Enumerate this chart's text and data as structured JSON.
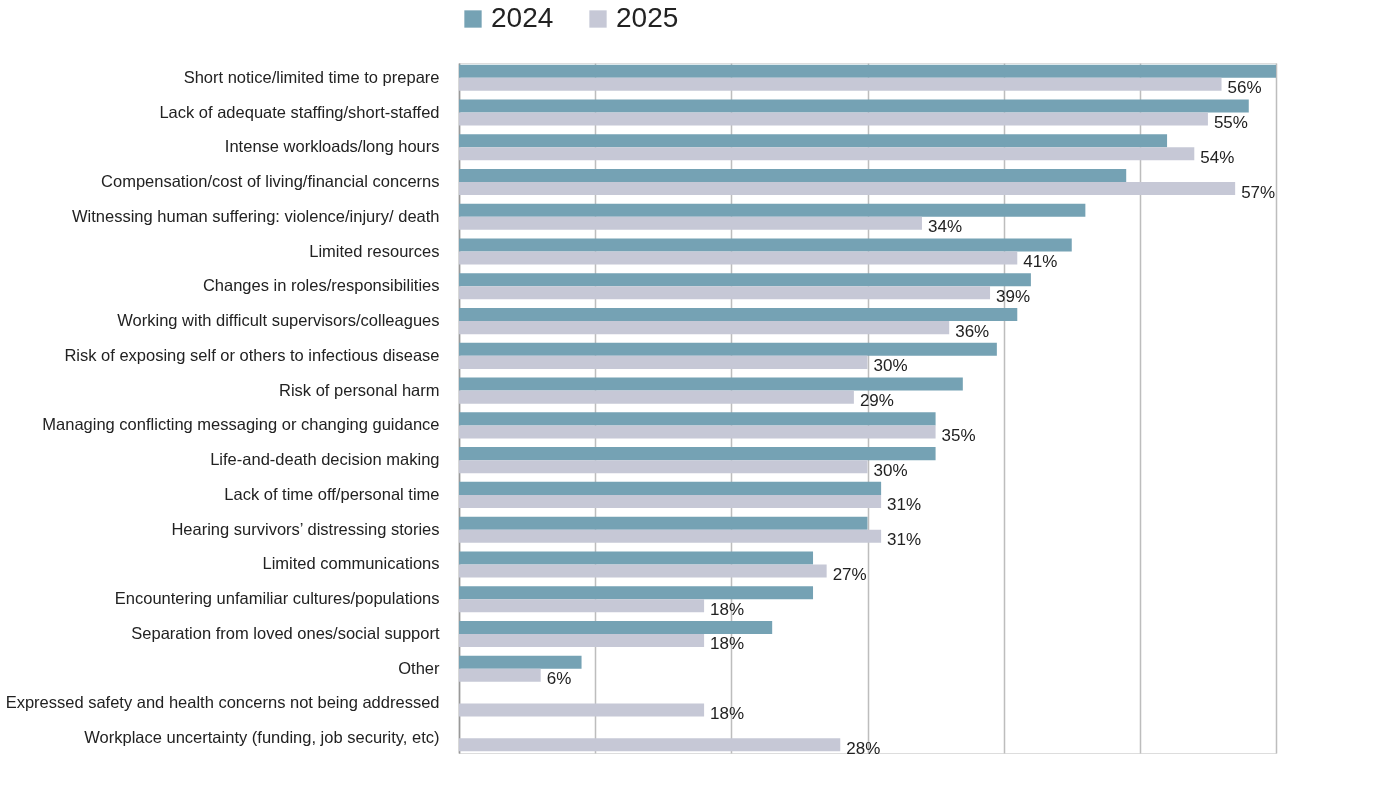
{
  "chart_data": {
    "type": "bar",
    "orientation": "horizontal",
    "categories": [
      "Short notice/limited time to prepare",
      "Lack of adequate staffing/short-staffed",
      "Intense workloads/long hours",
      "Compensation/cost of living/financial concerns",
      "Witnessing human suffering: violence/injury/ death",
      "Limited resources",
      "Changes in roles/responsibilities",
      "Working with difficult supervisors/colleagues",
      "Risk of exposing self or others to infectious disease",
      "Risk of personal harm",
      "Managing conflicting messaging or changing guidance",
      "Life-and-death decision making",
      "Lack of time off/personal time",
      "Hearing survivors’ distressing stories",
      "Limited communications",
      "Encountering unfamiliar cultures/populations",
      "Separation from loved ones/social support",
      "Other",
      "Expressed safety and health concerns not being addressed",
      "Workplace uncertainty (funding, job security, etc)"
    ],
    "series": [
      {
        "name": "2024",
        "color": "#75a2b4",
        "values": [
          60,
          58,
          52,
          49,
          46,
          45,
          42,
          41,
          39.5,
          37,
          35,
          35,
          31,
          30,
          26,
          26,
          23,
          9,
          null,
          null
        ]
      },
      {
        "name": "2025",
        "color": "#c6c8d6",
        "values": [
          56,
          55,
          54,
          57,
          34,
          41,
          39,
          36,
          30,
          29,
          35,
          30,
          31,
          31,
          27,
          18,
          18,
          6,
          18,
          28
        ],
        "value_labels": [
          "56%",
          "55%",
          "54%",
          "57%",
          "34%",
          "41%",
          "39%",
          "36%",
          "30%",
          "29%",
          "35%",
          "30%",
          "31%",
          "31%",
          "27%",
          "18%",
          "18%",
          "6%",
          "18%",
          "28%"
        ]
      }
    ],
    "xlim": [
      0,
      60
    ],
    "xticks": [
      {
        "value": 0,
        "label": null
      },
      {
        "value": 10,
        "label": null
      },
      {
        "value": 20,
        "label": null
      },
      {
        "value": 30,
        "label": null
      },
      {
        "value": 40,
        "label": null
      },
      {
        "value": 50,
        "label": null
      },
      {
        "value": 60,
        "label": null
      }
    ],
    "tick_labels": "y",
    "grid": "x",
    "legend": "top"
  }
}
